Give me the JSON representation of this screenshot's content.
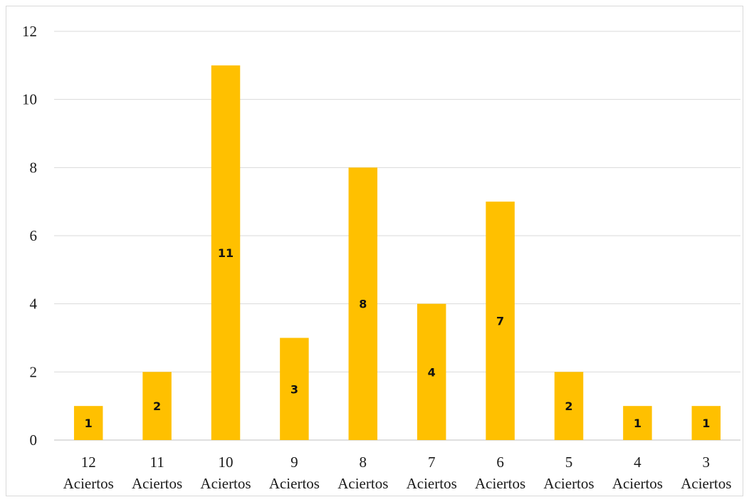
{
  "chart_data": {
    "type": "bar",
    "categories": [
      [
        "12",
        "Aciertos"
      ],
      [
        "11",
        "Aciertos"
      ],
      [
        "10",
        "Aciertos"
      ],
      [
        "9",
        "Aciertos"
      ],
      [
        "8",
        "Aciertos"
      ],
      [
        "7",
        "Aciertos"
      ],
      [
        "6",
        "Aciertos"
      ],
      [
        "5",
        "Aciertos"
      ],
      [
        "4",
        "Aciertos"
      ],
      [
        "3",
        "Aciertos"
      ]
    ],
    "values": [
      1,
      2,
      11,
      3,
      8,
      4,
      7,
      2,
      1,
      1
    ],
    "data_labels": [
      "1",
      "2",
      "11",
      "3",
      "8",
      "4",
      "7",
      "2",
      "1",
      "1"
    ],
    "title": "",
    "xlabel": "",
    "ylabel": "",
    "ylim": [
      0,
      12
    ],
    "yticks": [
      "0",
      "2",
      "4",
      "6",
      "8",
      "10",
      "12"
    ],
    "grid": true,
    "legend": "none",
    "bar_color": "#ffc000"
  }
}
